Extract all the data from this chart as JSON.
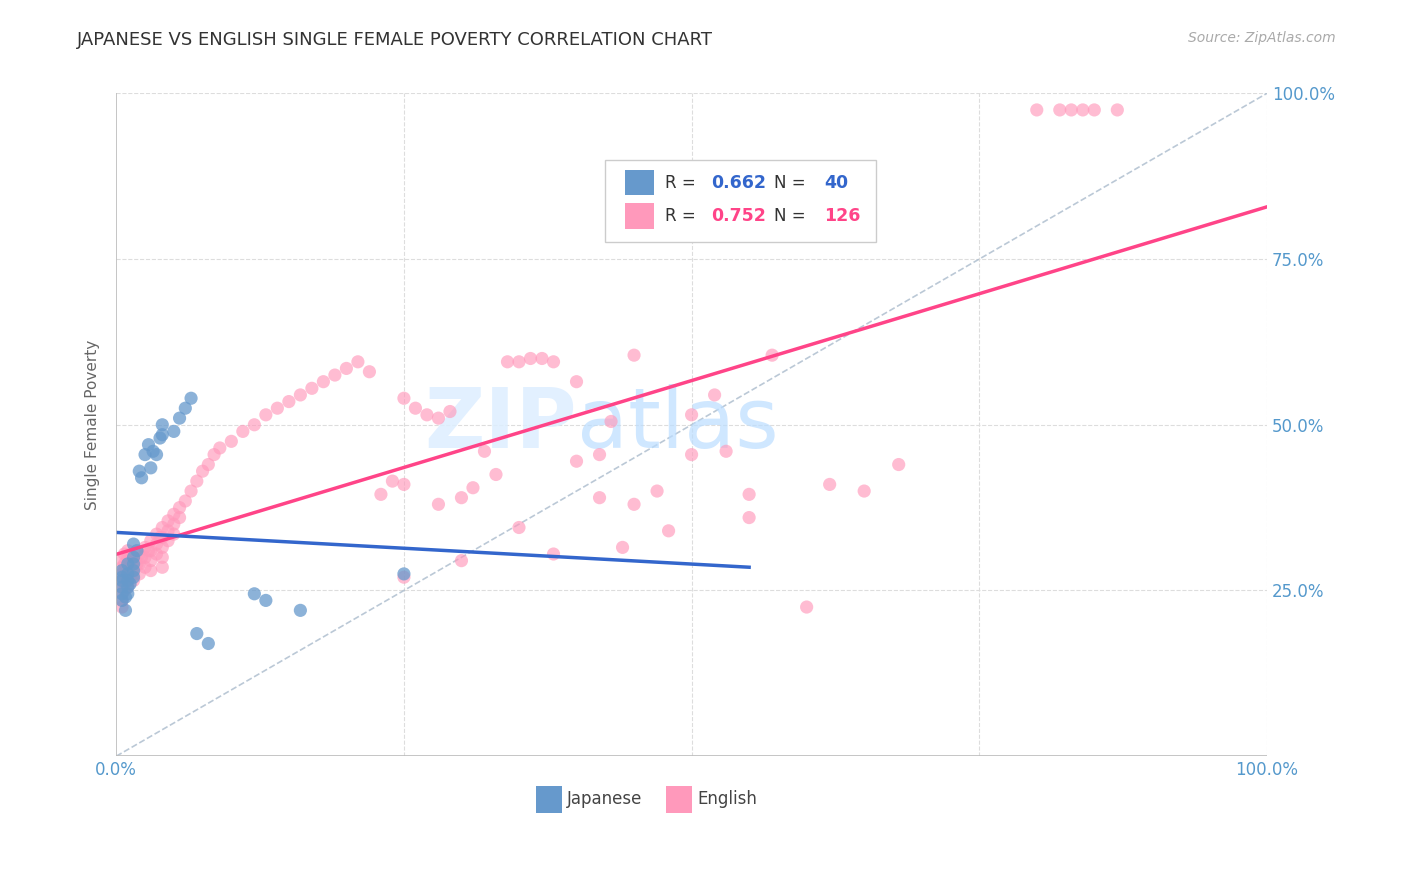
{
  "title": "JAPANESE VS ENGLISH SINGLE FEMALE POVERTY CORRELATION CHART",
  "source": "Source: ZipAtlas.com",
  "ylabel": "Single Female Poverty",
  "watermark_zip": "ZIP",
  "watermark_atlas": "atlas",
  "legend_japanese": "Japanese",
  "legend_english": "English",
  "R_japanese": 0.662,
  "N_japanese": 40,
  "R_english": 0.752,
  "N_english": 126,
  "xlim": [
    0,
    1.0
  ],
  "ylim": [
    0,
    1.0
  ],
  "xticks": [
    0,
    0.25,
    0.5,
    0.75,
    1.0
  ],
  "yticks": [
    0,
    0.25,
    0.5,
    0.75,
    1.0
  ],
  "blue_color": "#6699cc",
  "pink_color": "#ff99bb",
  "blue_line_color": "#3366cc",
  "pink_line_color": "#ff4488",
  "diagonal_color": "#aabbcc",
  "title_color": "#333333",
  "tick_label_color": "#5599cc",
  "background_color": "#ffffff",
  "grid_color": "#dddddd",
  "japanese_points": [
    [
      0.005,
      0.28
    ],
    [
      0.005,
      0.27
    ],
    [
      0.005,
      0.265
    ],
    [
      0.005,
      0.255
    ],
    [
      0.005,
      0.245
    ],
    [
      0.005,
      0.235
    ],
    [
      0.008,
      0.24
    ],
    [
      0.008,
      0.22
    ],
    [
      0.01,
      0.29
    ],
    [
      0.01,
      0.275
    ],
    [
      0.01,
      0.265
    ],
    [
      0.01,
      0.255
    ],
    [
      0.01,
      0.245
    ],
    [
      0.012,
      0.26
    ],
    [
      0.015,
      0.32
    ],
    [
      0.015,
      0.3
    ],
    [
      0.015,
      0.29
    ],
    [
      0.015,
      0.28
    ],
    [
      0.015,
      0.27
    ],
    [
      0.018,
      0.31
    ],
    [
      0.02,
      0.43
    ],
    [
      0.022,
      0.42
    ],
    [
      0.025,
      0.455
    ],
    [
      0.028,
      0.47
    ],
    [
      0.03,
      0.435
    ],
    [
      0.032,
      0.46
    ],
    [
      0.035,
      0.455
    ],
    [
      0.038,
      0.48
    ],
    [
      0.04,
      0.5
    ],
    [
      0.04,
      0.485
    ],
    [
      0.05,
      0.49
    ],
    [
      0.055,
      0.51
    ],
    [
      0.06,
      0.525
    ],
    [
      0.065,
      0.54
    ],
    [
      0.07,
      0.185
    ],
    [
      0.08,
      0.17
    ],
    [
      0.12,
      0.245
    ],
    [
      0.13,
      0.235
    ],
    [
      0.16,
      0.22
    ],
    [
      0.25,
      0.275
    ]
  ],
  "english_points": [
    [
      0.005,
      0.295
    ],
    [
      0.005,
      0.285
    ],
    [
      0.005,
      0.275
    ],
    [
      0.005,
      0.265
    ],
    [
      0.005,
      0.255
    ],
    [
      0.005,
      0.245
    ],
    [
      0.005,
      0.235
    ],
    [
      0.005,
      0.225
    ],
    [
      0.007,
      0.305
    ],
    [
      0.007,
      0.29
    ],
    [
      0.007,
      0.28
    ],
    [
      0.007,
      0.27
    ],
    [
      0.007,
      0.26
    ],
    [
      0.007,
      0.25
    ],
    [
      0.01,
      0.31
    ],
    [
      0.01,
      0.3
    ],
    [
      0.01,
      0.285
    ],
    [
      0.01,
      0.275
    ],
    [
      0.01,
      0.265
    ],
    [
      0.01,
      0.255
    ],
    [
      0.012,
      0.295
    ],
    [
      0.012,
      0.28
    ],
    [
      0.012,
      0.27
    ],
    [
      0.015,
      0.3
    ],
    [
      0.015,
      0.285
    ],
    [
      0.015,
      0.275
    ],
    [
      0.015,
      0.265
    ],
    [
      0.018,
      0.29
    ],
    [
      0.02,
      0.305
    ],
    [
      0.02,
      0.29
    ],
    [
      0.02,
      0.275
    ],
    [
      0.022,
      0.3
    ],
    [
      0.025,
      0.315
    ],
    [
      0.025,
      0.3
    ],
    [
      0.025,
      0.285
    ],
    [
      0.028,
      0.31
    ],
    [
      0.03,
      0.325
    ],
    [
      0.03,
      0.31
    ],
    [
      0.03,
      0.295
    ],
    [
      0.03,
      0.28
    ],
    [
      0.035,
      0.335
    ],
    [
      0.035,
      0.32
    ],
    [
      0.035,
      0.305
    ],
    [
      0.038,
      0.33
    ],
    [
      0.04,
      0.345
    ],
    [
      0.04,
      0.33
    ],
    [
      0.04,
      0.315
    ],
    [
      0.04,
      0.3
    ],
    [
      0.04,
      0.285
    ],
    [
      0.045,
      0.355
    ],
    [
      0.045,
      0.34
    ],
    [
      0.045,
      0.325
    ],
    [
      0.05,
      0.365
    ],
    [
      0.05,
      0.35
    ],
    [
      0.05,
      0.335
    ],
    [
      0.055,
      0.375
    ],
    [
      0.055,
      0.36
    ],
    [
      0.06,
      0.385
    ],
    [
      0.065,
      0.4
    ],
    [
      0.07,
      0.415
    ],
    [
      0.075,
      0.43
    ],
    [
      0.08,
      0.44
    ],
    [
      0.085,
      0.455
    ],
    [
      0.09,
      0.465
    ],
    [
      0.1,
      0.475
    ],
    [
      0.11,
      0.49
    ],
    [
      0.12,
      0.5
    ],
    [
      0.13,
      0.515
    ],
    [
      0.14,
      0.525
    ],
    [
      0.15,
      0.535
    ],
    [
      0.16,
      0.545
    ],
    [
      0.17,
      0.555
    ],
    [
      0.18,
      0.565
    ],
    [
      0.19,
      0.575
    ],
    [
      0.2,
      0.585
    ],
    [
      0.21,
      0.595
    ],
    [
      0.22,
      0.58
    ],
    [
      0.23,
      0.395
    ],
    [
      0.24,
      0.415
    ],
    [
      0.25,
      0.54
    ],
    [
      0.25,
      0.41
    ],
    [
      0.26,
      0.525
    ],
    [
      0.27,
      0.515
    ],
    [
      0.28,
      0.51
    ],
    [
      0.29,
      0.52
    ],
    [
      0.3,
      0.39
    ],
    [
      0.31,
      0.405
    ],
    [
      0.33,
      0.425
    ],
    [
      0.35,
      0.595
    ],
    [
      0.37,
      0.6
    ],
    [
      0.38,
      0.595
    ],
    [
      0.4,
      0.445
    ],
    [
      0.42,
      0.39
    ],
    [
      0.45,
      0.605
    ],
    [
      0.47,
      0.4
    ],
    [
      0.5,
      0.455
    ],
    [
      0.52,
      0.545
    ],
    [
      0.55,
      0.36
    ],
    [
      0.57,
      0.605
    ],
    [
      0.6,
      0.225
    ],
    [
      0.62,
      0.41
    ],
    [
      0.65,
      0.4
    ],
    [
      0.68,
      0.44
    ],
    [
      0.4,
      0.565
    ],
    [
      0.43,
      0.505
    ],
    [
      0.36,
      0.6
    ],
    [
      0.34,
      0.595
    ],
    [
      0.28,
      0.38
    ],
    [
      0.32,
      0.46
    ],
    [
      0.45,
      0.38
    ],
    [
      0.5,
      0.515
    ],
    [
      0.53,
      0.46
    ],
    [
      0.55,
      0.395
    ],
    [
      0.48,
      0.34
    ],
    [
      0.44,
      0.315
    ],
    [
      0.38,
      0.305
    ],
    [
      0.42,
      0.455
    ],
    [
      0.35,
      0.345
    ],
    [
      0.3,
      0.295
    ],
    [
      0.25,
      0.27
    ],
    [
      0.8,
      0.975
    ],
    [
      0.82,
      0.975
    ],
    [
      0.83,
      0.975
    ],
    [
      0.84,
      0.975
    ],
    [
      0.85,
      0.975
    ],
    [
      0.87,
      0.975
    ]
  ]
}
